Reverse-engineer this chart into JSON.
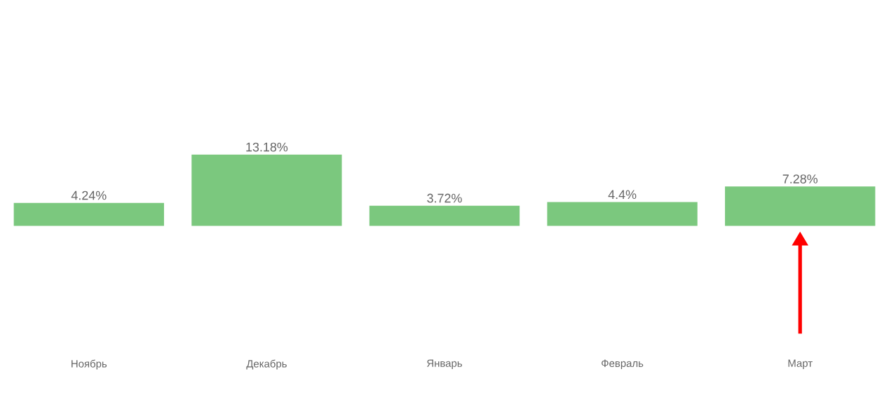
{
  "chart_data": {
    "type": "bar",
    "categories": [
      "Ноябрь",
      "Декабрь",
      "Январь",
      "Февраль",
      "Март"
    ],
    "values": [
      4.24,
      13.18,
      3.72,
      4.4,
      7.28
    ],
    "value_labels": [
      "4.24%",
      "13.18%",
      "3.72%",
      "4.4%",
      "7.28%"
    ],
    "color": "#7bc87e"
  }
}
